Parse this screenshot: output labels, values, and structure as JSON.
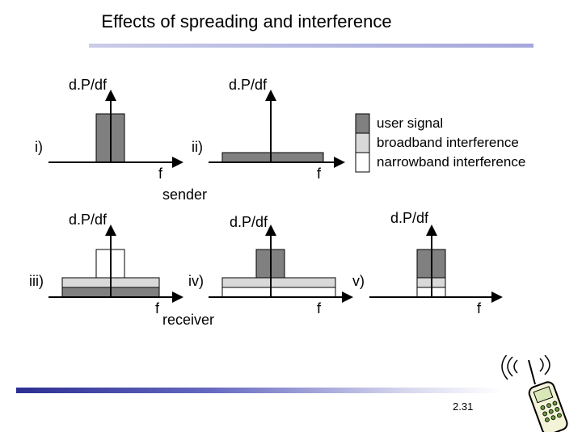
{
  "title": "Effects of spreading and interference",
  "axis_label": "d.P/df",
  "freq_label": "f",
  "panels": {
    "i": "i)",
    "ii": "ii)",
    "iii": "iii)",
    "iv": "iv)",
    "v": "v)"
  },
  "captions": {
    "sender": "sender",
    "receiver": "receiver"
  },
  "legend": [
    {
      "label": "user signal",
      "color": "#808080"
    },
    {
      "label": "broadband interference",
      "color": "#d9d9d9"
    },
    {
      "label": "narrowband interference",
      "color": "#ffffff"
    }
  ],
  "page_number": "2.31",
  "colors": {
    "accent": "#2b2f92",
    "dark_fill": "#808080",
    "light_fill": "#d9d9d9"
  }
}
